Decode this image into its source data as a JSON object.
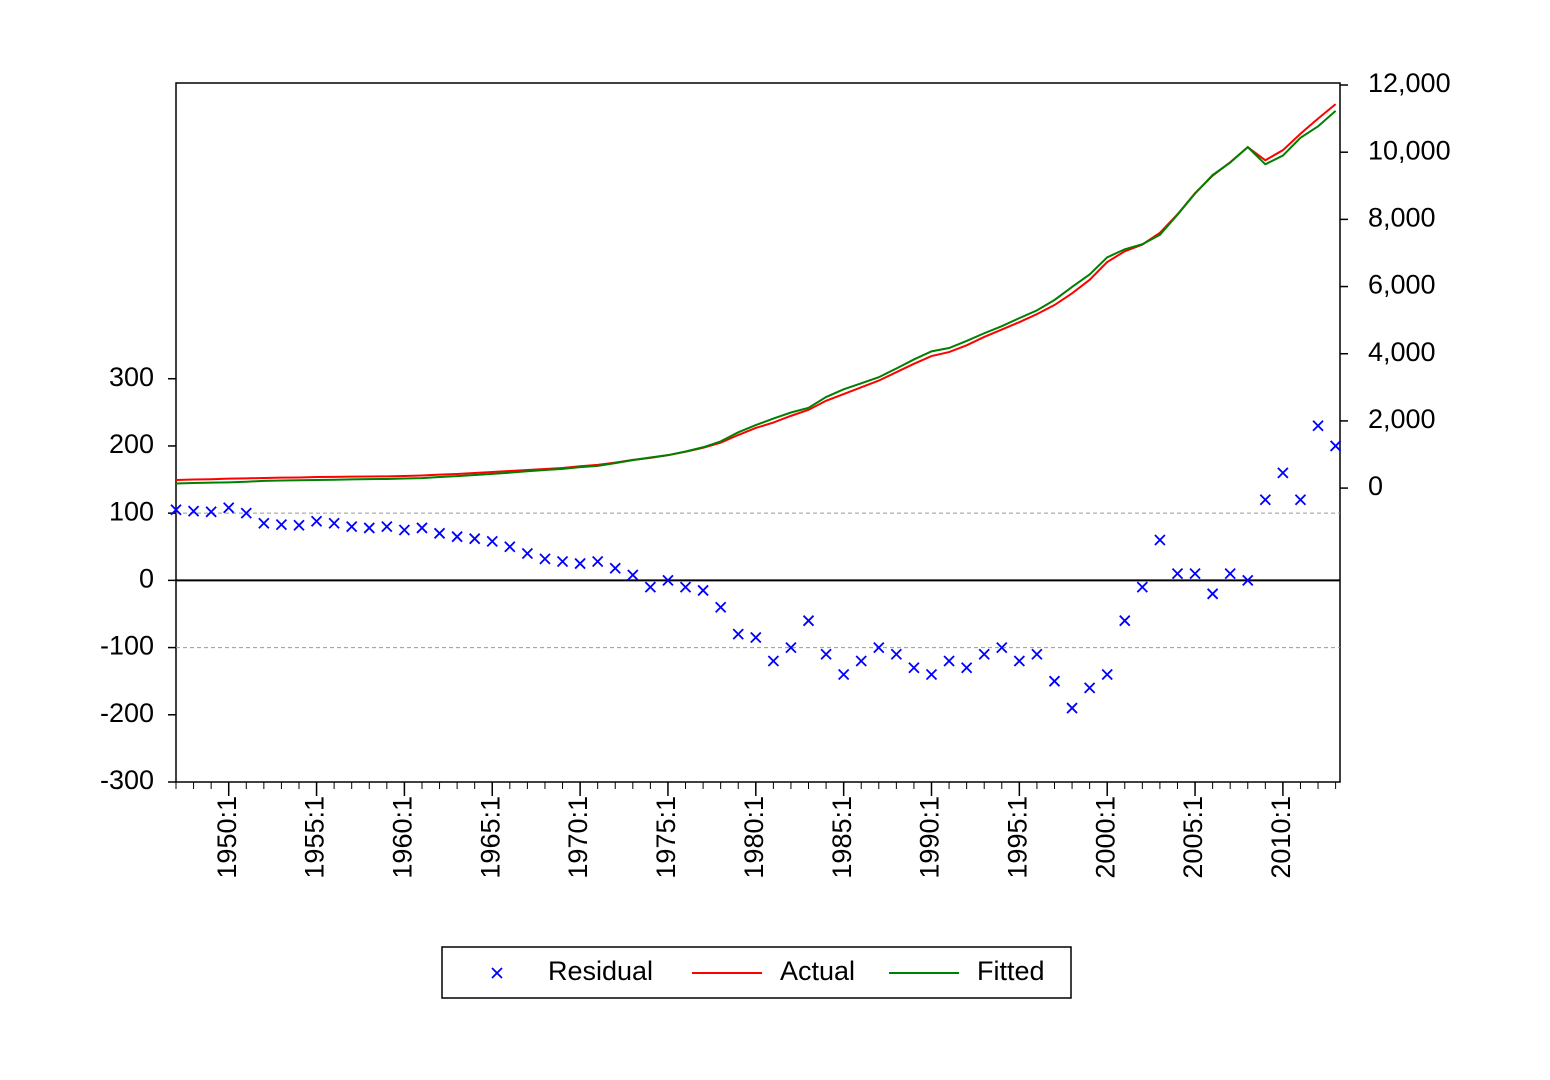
{
  "chart_data": {
    "type": "line",
    "x": [
      1947,
      1948,
      1949,
      1950,
      1951,
      1952,
      1953,
      1954,
      1955,
      1956,
      1957,
      1958,
      1959,
      1960,
      1961,
      1962,
      1963,
      1964,
      1965,
      1966,
      1967,
      1968,
      1969,
      1970,
      1971,
      1972,
      1973,
      1974,
      1975,
      1976,
      1977,
      1978,
      1979,
      1980,
      1981,
      1982,
      1983,
      1984,
      1985,
      1986,
      1987,
      1988,
      1989,
      1990,
      1991,
      1992,
      1993,
      1994,
      1995,
      1996,
      1997,
      1998,
      1999,
      2000,
      2001,
      2002,
      2003,
      2004,
      2005,
      2006,
      2007,
      2008,
      2009,
      2010,
      2011,
      2012,
      2013
    ],
    "series": [
      {
        "name": "Residual",
        "color": "#0000ff",
        "axis": "y",
        "mode": "markers",
        "values": [
          105,
          103,
          102,
          108,
          100,
          85,
          83,
          82,
          88,
          85,
          80,
          78,
          80,
          75,
          78,
          70,
          65,
          62,
          58,
          50,
          40,
          32,
          28,
          25,
          28,
          18,
          8,
          -10,
          0,
          -10,
          -15,
          -40,
          -80,
          -85,
          -120,
          -100,
          -60,
          -110,
          -140,
          -120,
          -100,
          -110,
          -130,
          -140,
          -120,
          -130,
          -110,
          -100,
          -120,
          -110,
          -150,
          -190,
          -160,
          -140,
          -60,
          -10,
          60,
          10,
          10,
          -20,
          10,
          0,
          120,
          160,
          120,
          230,
          200
        ]
      },
      {
        "name": "Actual",
        "color": "#ff0000",
        "axis": "y2",
        "mode": "line",
        "values": [
          240,
          255,
          265,
          280,
          290,
          300,
          310,
          315,
          330,
          335,
          340,
          345,
          350,
          360,
          375,
          400,
          420,
          450,
          480,
          510,
          540,
          570,
          600,
          650,
          690,
          760,
          840,
          900,
          980,
          1080,
          1200,
          1350,
          1580,
          1790,
          1950,
          2150,
          2330,
          2600,
          2800,
          3000,
          3200,
          3450,
          3700,
          3930,
          4050,
          4250,
          4500,
          4720,
          4940,
          5180,
          5450,
          5800,
          6200,
          6730,
          7050,
          7250,
          7600,
          8150,
          8780,
          9300,
          9700,
          10150,
          9760,
          10060,
          10550,
          11000,
          11430
        ]
      },
      {
        "name": "Fitted",
        "color": "#008000",
        "axis": "y2",
        "mode": "line",
        "values": [
          135,
          152,
          163,
          172,
          190,
          215,
          227,
          233,
          242,
          250,
          260,
          267,
          270,
          285,
          297,
          330,
          355,
          388,
          422,
          460,
          500,
          538,
          572,
          625,
          662,
          742,
          832,
          910,
          980,
          1090,
          1215,
          1390,
          1660,
          1875,
          2070,
          2250,
          2390,
          2710,
          2940,
          3120,
          3300,
          3560,
          3830,
          4070,
          4170,
          4380,
          4610,
          4820,
          5060,
          5290,
          5600,
          5990,
          6360,
          6870,
          7110,
          7260,
          7540,
          8140,
          8770,
          9320,
          9690,
          10150,
          9640,
          9900,
          10430,
          10770,
          11230
        ]
      }
    ],
    "xlim": [
      1947,
      2013.25
    ],
    "xticks": [
      {
        "value": 1950,
        "label": "1950:1"
      },
      {
        "value": 1955,
        "label": "1955:1"
      },
      {
        "value": 1960,
        "label": "1960:1"
      },
      {
        "value": 1965,
        "label": "1965:1"
      },
      {
        "value": 1970,
        "label": "1970:1"
      },
      {
        "value": 1975,
        "label": "1975:1"
      },
      {
        "value": 1980,
        "label": "1980:1"
      },
      {
        "value": 1985,
        "label": "1985:1"
      },
      {
        "value": 1990,
        "label": "1990:1"
      },
      {
        "value": 1995,
        "label": "1995:1"
      },
      {
        "value": 2000,
        "label": "2000:1"
      },
      {
        "value": 2005,
        "label": "2005:1"
      },
      {
        "value": 2010,
        "label": "2010:1"
      }
    ],
    "ylim": [
      -300,
      740
    ],
    "yticks": [
      -300,
      -200,
      -100,
      0,
      100,
      200,
      300
    ],
    "y2lim": [
      -8750,
      12060
    ],
    "y2ticks": [
      0,
      {
        "value": 2000,
        "label": "2,000"
      },
      {
        "value": 4000,
        "label": "4,000"
      },
      {
        "value": 6000,
        "label": "6,000"
      },
      {
        "value": 8000,
        "label": "8,000"
      },
      {
        "value": 10000,
        "label": "10,000"
      },
      {
        "value": 12000,
        "label": "12,000"
      }
    ],
    "hlines": [
      {
        "value": -100,
        "style": "dashed"
      },
      {
        "value": 0,
        "style": "solid"
      },
      {
        "value": 100,
        "style": "dashed"
      }
    ],
    "legend": "bottom"
  }
}
